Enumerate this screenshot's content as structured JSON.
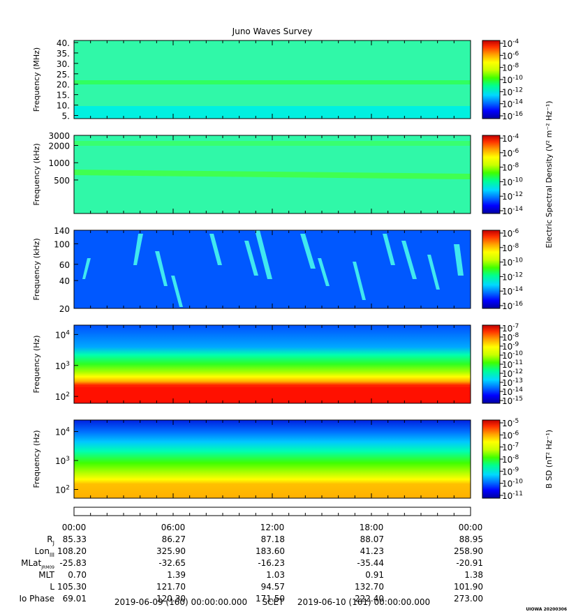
{
  "chart_data": {
    "type": "heatmap",
    "title": "Juno Waves Survey",
    "x": {
      "tick_labels": [
        "00:00",
        "06:00",
        "12:00",
        "18:00",
        "00:00"
      ]
    },
    "panels": [
      {
        "ylabel": "Frequency (MHz)",
        "yscale": "linear",
        "ylim": [
          3.5,
          41
        ],
        "yticks": [
          5,
          10,
          15,
          20,
          25,
          30,
          35,
          40
        ],
        "ytick_labels": [
          "5.",
          "10.",
          "15.",
          "20.",
          "25.",
          "30.",
          "35.",
          "40."
        ],
        "colorbar_exponents": [
          "-4",
          "-6",
          "-8",
          "-10",
          "-12",
          "-14",
          "-16"
        ]
      },
      {
        "ylabel": "Frequency (kHz)",
        "yscale": "log",
        "ylim": [
          130,
          3000
        ],
        "yticks": [
          500,
          1000,
          2000,
          3000
        ],
        "ytick_labels": [
          "500",
          "1000",
          "2000",
          "3000"
        ],
        "colorbar_exponents": [
          "-4",
          "-6",
          "-8",
          "-10",
          "-12",
          "-14"
        ]
      },
      {
        "ylabel": "Frequency (kHz)",
        "yscale": "log",
        "ylim": [
          20,
          140
        ],
        "yticks": [
          20,
          40,
          60,
          100,
          140
        ],
        "ytick_labels": [
          "20",
          "40",
          "60",
          "100",
          "140"
        ],
        "colorbar_exponents": [
          "-6",
          "-8",
          "-10",
          "-12",
          "-14",
          "-16"
        ]
      },
      {
        "ylabel": "Frequency (Hz)",
        "yscale": "log",
        "ylim": [
          60,
          20000
        ],
        "yticks": [
          100,
          1000,
          10000
        ],
        "ytick_bases": [
          "10",
          "10",
          "10"
        ],
        "ytick_exponents": [
          "2",
          "3",
          "4"
        ],
        "colorbar_exponents": [
          "-7",
          "-8",
          "-9",
          "-10",
          "-11",
          "-12",
          "-13",
          "-14",
          "-15"
        ]
      },
      {
        "ylabel": "Frequency (Hz)",
        "yscale": "log",
        "ylim": [
          50,
          25000
        ],
        "yticks": [
          100,
          1000,
          10000
        ],
        "ytick_bases": [
          "10",
          "10",
          "10"
        ],
        "ytick_exponents": [
          "2",
          "3",
          "4"
        ],
        "colorbar_exponents": [
          "-5",
          "-6",
          "-7",
          "-8",
          "-9",
          "-10",
          "-11"
        ]
      }
    ],
    "colorbar_labels": {
      "electric": "Electric Spectral Density (V² m⁻² Hz⁻¹)",
      "magnetic": "B SD (nT² Hz⁻¹)"
    },
    "ephemeris": [
      {
        "label": "R",
        "subscript": "J",
        "values": [
          "85.33",
          "86.27",
          "87.18",
          "88.07",
          "88.95"
        ]
      },
      {
        "label": "Lon",
        "subscript": "III",
        "values": [
          "108.20",
          "325.90",
          "183.60",
          "41.23",
          "258.90"
        ]
      },
      {
        "label": "MLat",
        "subscript": "JRM09",
        "values": [
          "-25.83",
          "-32.65",
          "-16.23",
          "-35.44",
          "-20.91"
        ]
      },
      {
        "label": "MLT",
        "subscript": "",
        "values": [
          "0.70",
          "1.39",
          "1.03",
          "0.91",
          "1.38"
        ]
      },
      {
        "label": "L",
        "subscript": "",
        "values": [
          "105.30",
          "121.70",
          "94.57",
          "132.70",
          "101.90"
        ]
      },
      {
        "label": "Io Phase",
        "subscript": "",
        "values": [
          "69.01",
          "120.30",
          "171.50",
          "222.40",
          "273.00"
        ]
      }
    ]
  },
  "footer": {
    "start": "2019-06-09 (160) 00:00:00.000",
    "scet": "SCET",
    "end": "2019-06-10 (161) 00:00:00.000"
  },
  "credit": "UIOWA 20200306",
  "colors": {
    "colormap": [
      "#0000a0",
      "#0000ff",
      "#0070ff",
      "#00d8ff",
      "#00ff90",
      "#40ff00",
      "#c8ff00",
      "#ffff00",
      "#ffa000",
      "#ff3000",
      "#c00000"
    ]
  }
}
